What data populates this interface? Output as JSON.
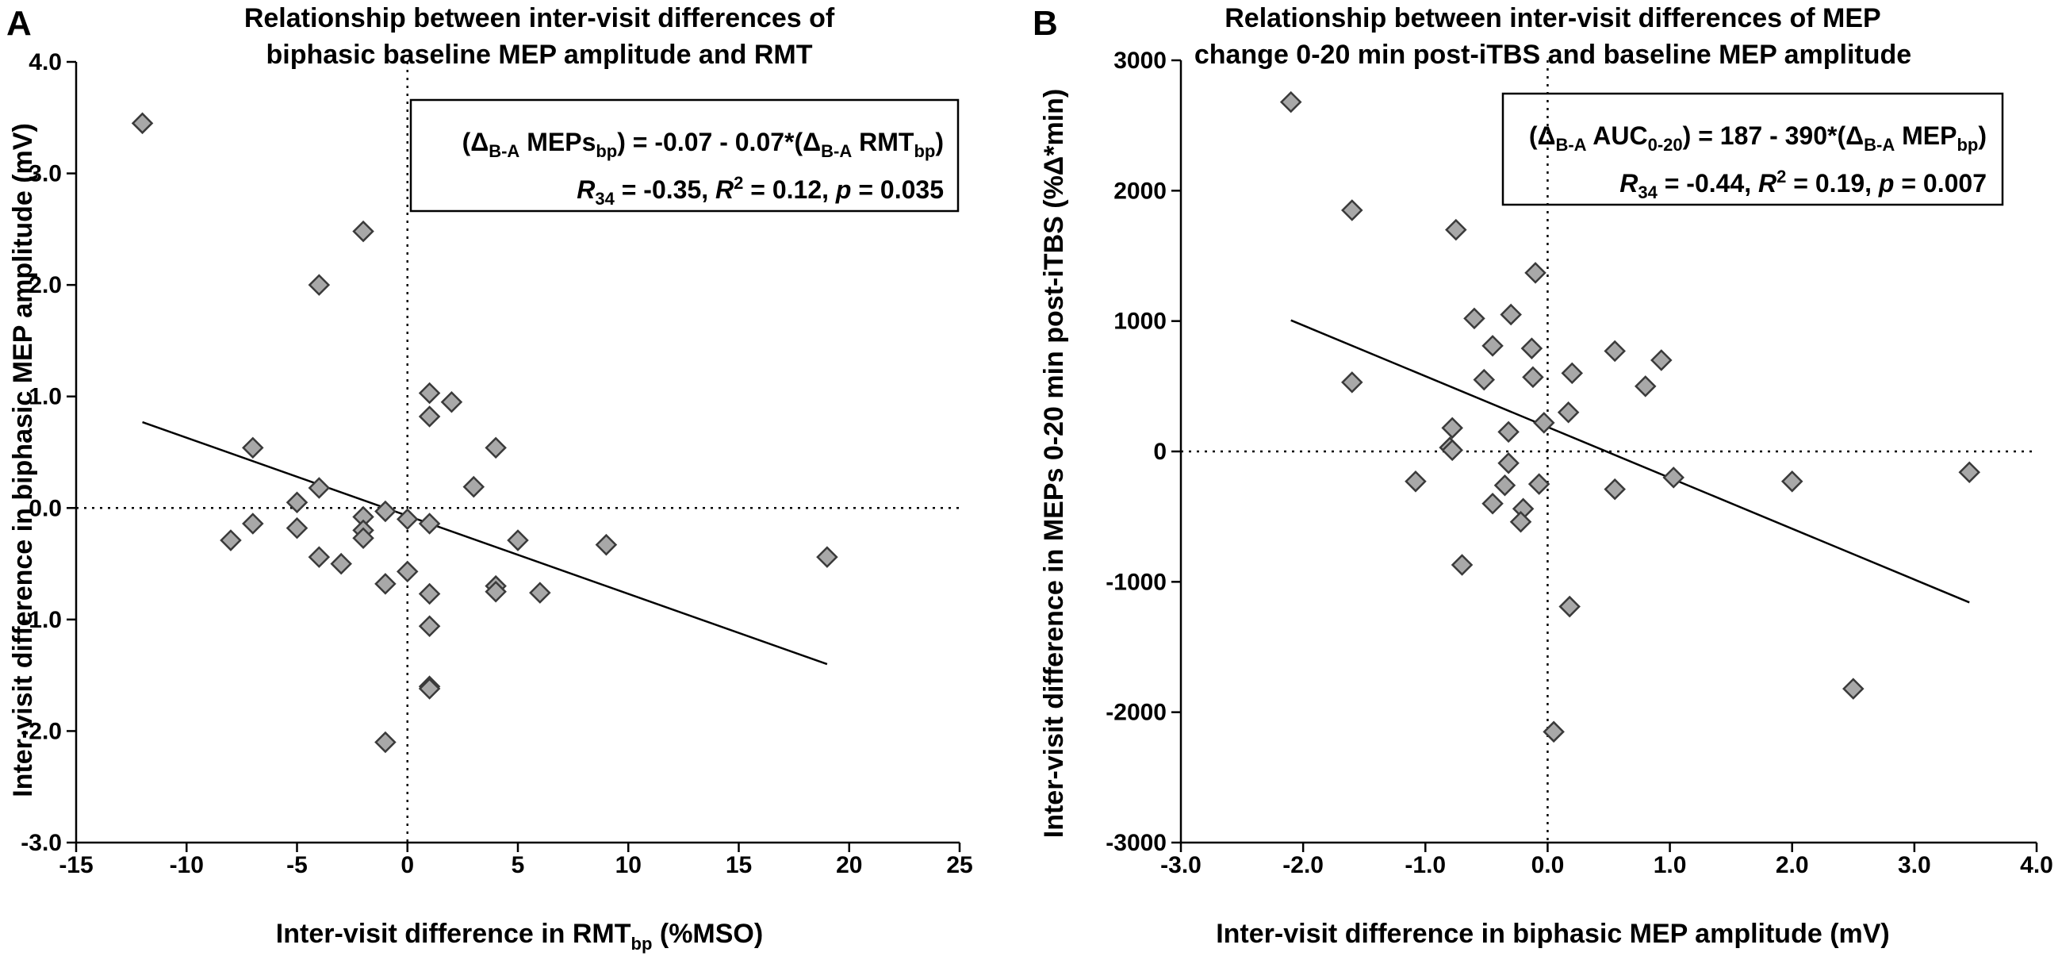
{
  "chart_data": [
    {
      "type": "scatter",
      "panel": "A",
      "title": [
        "Relationship between inter-visit differences of",
        "biphasic baseline MEP amplitude and RMT"
      ],
      "xlabel": "Inter-visit difference in RMT",
      "xlabel_sub": "bp",
      "xlabel_suffix": " (%MSO)",
      "ylabel": "Inter-visit difference in biphasic MEP amplitude (mV)",
      "xlim": [
        -15,
        25
      ],
      "ylim": [
        -3.0,
        4.0
      ],
      "xticks": [
        -15,
        -10,
        -5,
        0,
        5,
        10,
        15,
        20,
        25
      ],
      "xtick_labels": [
        "-15",
        "-10",
        "-5",
        "0",
        "5",
        "10",
        "15",
        "20",
        "25"
      ],
      "yticks": [
        -3.0,
        -2.0,
        -1.0,
        0.0,
        1.0,
        2.0,
        3.0,
        4.0
      ],
      "ytick_labels": [
        "-3.0",
        "-2.0",
        "-1.0",
        "0.0",
        "1.0",
        "2.0",
        "3.0",
        "4.0"
      ],
      "fit_line": {
        "x": [
          -12,
          19
        ],
        "y": [
          0.77,
          -1.4
        ]
      },
      "equation": {
        "line1": {
          "open": "(",
          "delta1": "Δ",
          "sub1": "B-A",
          "mid1": " MEPs",
          "sub2": "bp",
          "mid2": ") = -0.07 - 0.07*(",
          "delta2": "Δ",
          "sub3": "B-A",
          "mid3": " RMT",
          "sub4": "bp",
          "close": ")"
        },
        "line2": {
          "r_label": "R",
          "r_sub": "34",
          "r_val": " = -0.35, ",
          "r2_label": "R",
          "r2_sup": "2",
          "r2_val": " = 0.12, ",
          "p_label": "p",
          "p_val": " = 0.035"
        }
      },
      "points": [
        {
          "x": -12,
          "y": 3.45
        },
        {
          "x": -2,
          "y": 2.48
        },
        {
          "x": -4,
          "y": 2.0
        },
        {
          "x": 1,
          "y": 1.03
        },
        {
          "x": 2,
          "y": 0.95
        },
        {
          "x": 1,
          "y": 0.82
        },
        {
          "x": -7,
          "y": 0.54
        },
        {
          "x": 4,
          "y": 0.54
        },
        {
          "x": 3,
          "y": 0.19
        },
        {
          "x": -4,
          "y": 0.18
        },
        {
          "x": -5,
          "y": 0.05
        },
        {
          "x": -1,
          "y": -0.03
        },
        {
          "x": -2,
          "y": -0.08
        },
        {
          "x": 0,
          "y": -0.1
        },
        {
          "x": -7,
          "y": -0.14
        },
        {
          "x": 1,
          "y": -0.14
        },
        {
          "x": -2,
          "y": -0.2
        },
        {
          "x": -5,
          "y": -0.18
        },
        {
          "x": -2,
          "y": -0.27
        },
        {
          "x": -8,
          "y": -0.29
        },
        {
          "x": 5,
          "y": -0.29
        },
        {
          "x": 9,
          "y": -0.33
        },
        {
          "x": -4,
          "y": -0.44
        },
        {
          "x": 19,
          "y": -0.44
        },
        {
          "x": -3,
          "y": -0.5
        },
        {
          "x": 0,
          "y": -0.57
        },
        {
          "x": -1,
          "y": -0.68
        },
        {
          "x": 4,
          "y": -0.7
        },
        {
          "x": 4,
          "y": -0.75
        },
        {
          "x": 1,
          "y": -0.77
        },
        {
          "x": 6,
          "y": -0.76
        },
        {
          "x": 1,
          "y": -1.06
        },
        {
          "x": 1,
          "y": -1.6
        },
        {
          "x": 1,
          "y": -1.62
        },
        {
          "x": -1,
          "y": -2.1
        }
      ]
    },
    {
      "type": "scatter",
      "panel": "B",
      "title": [
        "Relationship between inter-visit differences of MEP",
        "change 0-20 min post-iTBS and baseline MEP amplitude"
      ],
      "xlabel": "Inter-visit difference in biphasic MEP amplitude (mV)",
      "ylabel": "Inter-visit difference in MEPs 0-20 min post-iTBS (%Δ*min)",
      "xlim": [
        -3.0,
        4.0
      ],
      "ylim": [
        -3000,
        3000
      ],
      "xticks": [
        -3.0,
        -2.0,
        -1.0,
        0.0,
        1.0,
        2.0,
        3.0,
        4.0
      ],
      "xtick_labels": [
        "-3.0",
        "-2.0",
        "-1.0",
        "0.0",
        "1.0",
        "2.0",
        "3.0",
        "4.0"
      ],
      "yticks": [
        -3000,
        -2000,
        -1000,
        0,
        1000,
        2000,
        3000
      ],
      "ytick_labels": [
        "-3000",
        "-2000",
        "-1000",
        "0",
        "1000",
        "2000",
        "3000"
      ],
      "fit_line": {
        "x": [
          -2.1,
          3.45
        ],
        "y": [
          1006,
          -1158
        ]
      },
      "equation": {
        "line1": {
          "open": "(",
          "delta1": "Δ",
          "sub1": "B-A",
          "mid1": " AUC",
          "sub2": "0-20",
          "mid2": ") = 187 - 390*(",
          "delta2": "Δ",
          "sub3": "B-A",
          "mid3": " MEP",
          "sub4": "bp",
          "close": ")"
        },
        "line2": {
          "r_label": "R",
          "r_sub": "34",
          "r_val": " = -0.44, ",
          "r2_label": "R",
          "r2_sup": "2",
          "r2_val": " = 0.19, ",
          "p_label": "p",
          "p_val": " = 0.007"
        }
      },
      "points": [
        {
          "x": -2.1,
          "y": 2680
        },
        {
          "x": -1.6,
          "y": 1850
        },
        {
          "x": -0.75,
          "y": 1700
        },
        {
          "x": -0.1,
          "y": 1370
        },
        {
          "x": -0.3,
          "y": 1050
        },
        {
          "x": 0.93,
          "y": 700
        },
        {
          "x": -0.6,
          "y": 1020
        },
        {
          "x": -0.13,
          "y": 790
        },
        {
          "x": -0.45,
          "y": 810
        },
        {
          "x": 0.55,
          "y": 770
        },
        {
          "x": -1.6,
          "y": 530
        },
        {
          "x": -0.52,
          "y": 550
        },
        {
          "x": -0.12,
          "y": 570
        },
        {
          "x": 0.2,
          "y": 600
        },
        {
          "x": 0.8,
          "y": 500
        },
        {
          "x": 0.17,
          "y": 300
        },
        {
          "x": -0.03,
          "y": 220
        },
        {
          "x": -0.78,
          "y": 180
        },
        {
          "x": -0.32,
          "y": 150
        },
        {
          "x": -0.8,
          "y": 30
        },
        {
          "x": -0.78,
          "y": 10
        },
        {
          "x": -0.32,
          "y": -90
        },
        {
          "x": 1.03,
          "y": -200
        },
        {
          "x": -1.08,
          "y": -230
        },
        {
          "x": 2.0,
          "y": -230
        },
        {
          "x": 3.45,
          "y": -160
        },
        {
          "x": -0.35,
          "y": -260
        },
        {
          "x": -0.07,
          "y": -250
        },
        {
          "x": 0.55,
          "y": -290
        },
        {
          "x": -0.45,
          "y": -400
        },
        {
          "x": -0.2,
          "y": -440
        },
        {
          "x": -0.22,
          "y": -540
        },
        {
          "x": -0.7,
          "y": -870
        },
        {
          "x": 0.18,
          "y": -1190
        },
        {
          "x": 2.5,
          "y": -1820
        },
        {
          "x": 0.05,
          "y": -2150
        }
      ]
    }
  ]
}
